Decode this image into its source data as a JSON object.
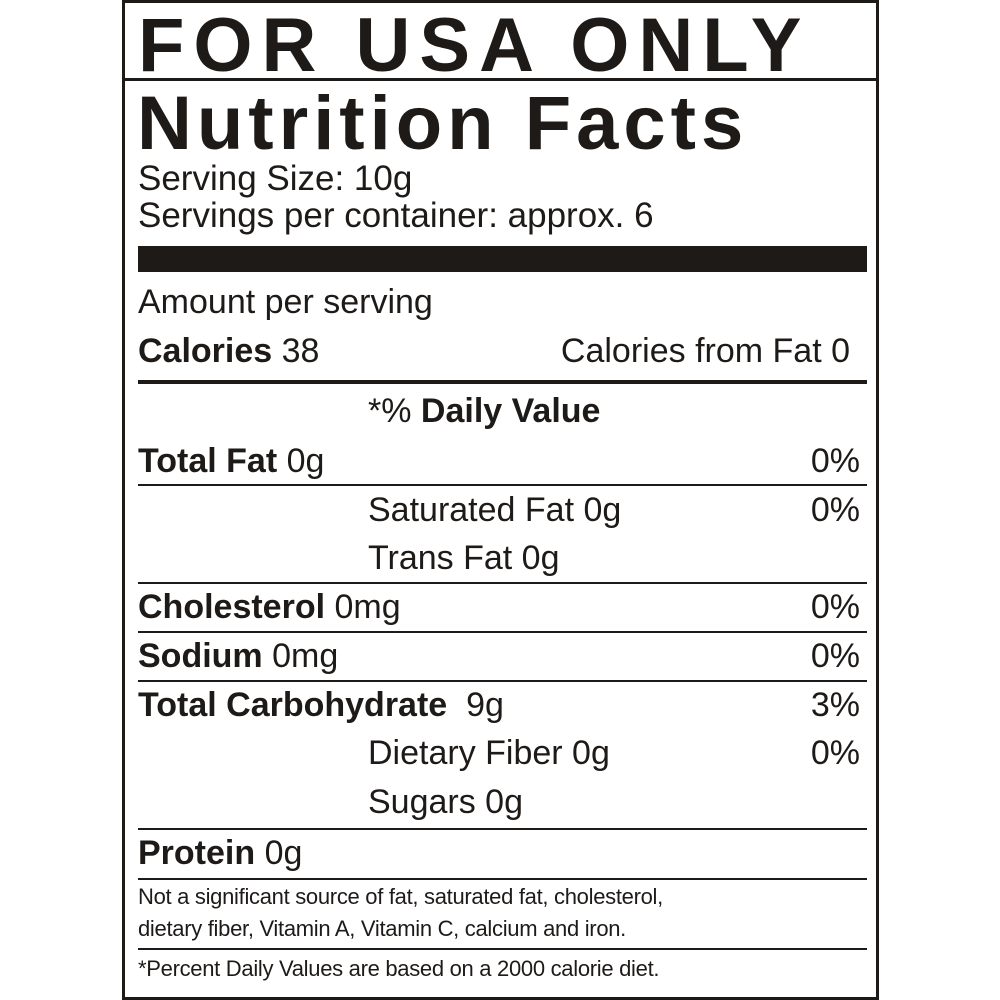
{
  "header": {
    "region": "FOR USA ONLY",
    "title": "Nutrition Facts"
  },
  "serving": {
    "size": "Serving Size: 10g",
    "per_container": "Servings per container: approx. 6"
  },
  "amount_label": "Amount per serving",
  "calories": {
    "label": "Calories",
    "value": "38",
    "from_fat": "Calories from Fat 0"
  },
  "dv_header": {
    "prefix": "*%",
    "label": "Daily Value"
  },
  "nutrients": [
    {
      "label": "Total Fat",
      "amount": "0g",
      "dv": "0%"
    },
    {
      "label": "Saturated Fat 0g",
      "dv": "0%"
    },
    {
      "label": "Trans Fat 0g"
    },
    {
      "label": "Cholesterol",
      "amount": "0mg",
      "dv": "0%"
    },
    {
      "label": "Sodium",
      "amount": "0mg",
      "dv": "0%"
    },
    {
      "label": "Total Carbohydrate",
      "amount": "9g",
      "dv": "3%"
    },
    {
      "label": "Dietary Fiber 0g",
      "dv": "0%"
    },
    {
      "label": "Sugars 0g"
    },
    {
      "label": "Protein",
      "amount": "0g"
    }
  ],
  "note": {
    "line1": "Not a significant source of fat, saturated fat, cholesterol,",
    "line2": "dietary fiber, Vitamin A, Vitamin C, calcium and iron."
  },
  "footnote": "*Percent Daily Values are based on a 2000 calorie diet."
}
